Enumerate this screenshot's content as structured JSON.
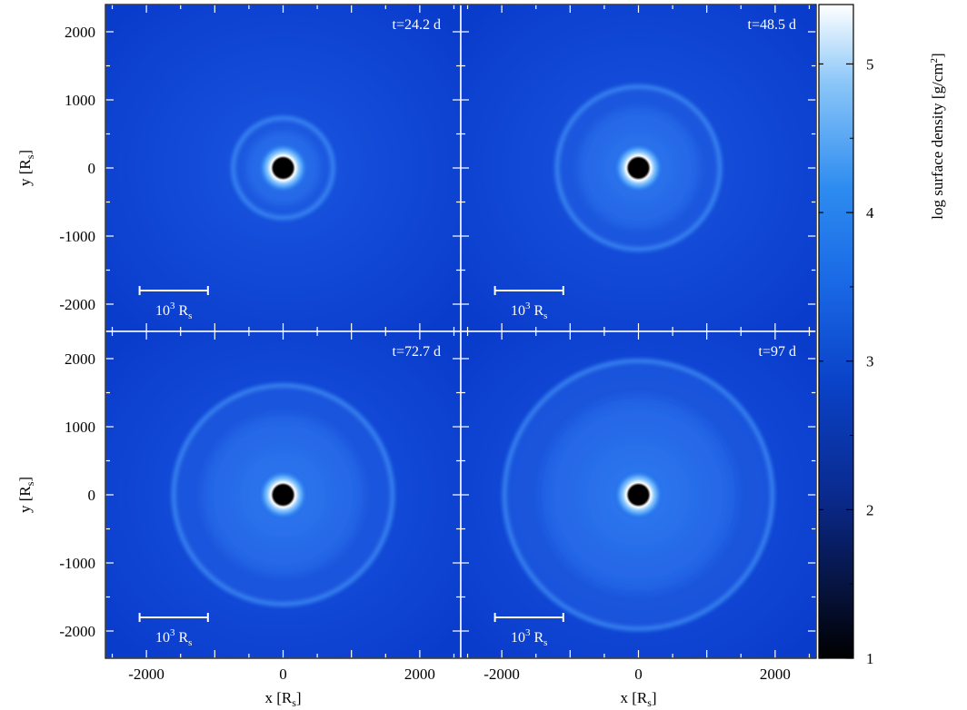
{
  "chart_data": {
    "type": "heatmap",
    "xlabel": "x [R",
    "xlabel_sub": "s",
    "xlabel_close": "]",
    "ylabel": "y [R",
    "ylabel_sub": "s",
    "ylabel_close": "]",
    "xlim": [
      -2600,
      2600
    ],
    "ylim": [
      -2400,
      2400
    ],
    "xticks": [
      -2000,
      0,
      2000
    ],
    "yticks": [
      2000,
      1000,
      0,
      -1000,
      -2000
    ],
    "panels": [
      {
        "time_label": "t=24.2 d",
        "outer_ring_radius": 770,
        "inner_ring_radius": 590
      },
      {
        "time_label": "t=48.5 d",
        "outer_ring_radius": 1230,
        "inner_ring_radius": 950
      },
      {
        "time_label": "t=72.7 d",
        "outer_ring_radius": 1640,
        "inner_ring_radius": 1250
      },
      {
        "time_label": "t=97 d",
        "outer_ring_radius": 2000,
        "inner_ring_radius": 1510
      }
    ],
    "scale_bar": {
      "length": 1000,
      "x_start": -2100,
      "y": -1800,
      "label_base": "10",
      "label_exp": "3",
      "label_unit": " R",
      "label_sub": "s"
    },
    "colorbar": {
      "label": "log surface density [g/cm",
      "label_sup": "2",
      "label_close": "]",
      "range": [
        1,
        5.4
      ],
      "ticks": [
        1,
        2,
        3,
        4,
        5
      ],
      "colors": [
        "#000000",
        "#0a1a55",
        "#0a2d9e",
        "#0047d8",
        "#1e6ee8",
        "#3c96f0",
        "#9ccff8",
        "#ffffff"
      ]
    }
  }
}
